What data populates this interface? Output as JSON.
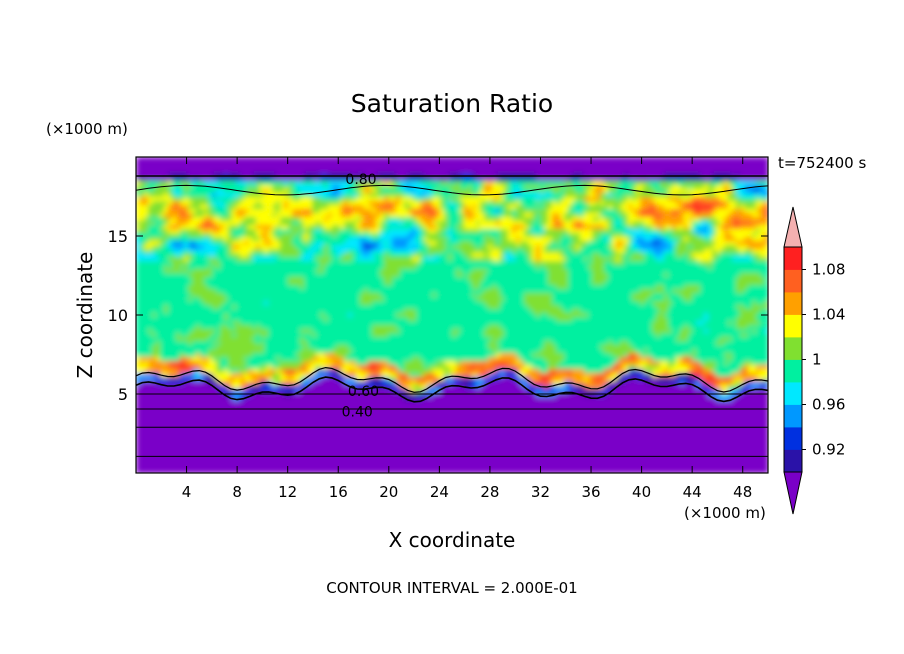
{
  "chart_data": {
    "type": "heatmap",
    "title": "Saturation Ratio",
    "xlabel": "X coordinate",
    "ylabel": "Z coordinate",
    "x_unit": "(×1000 m)",
    "y_unit": "(×1000 m)",
    "time_label": "t=752400 s",
    "footer": "CONTOUR INTERVAL = 2.000E-01",
    "xlim": [
      0,
      50
    ],
    "ylim": [
      0,
      20
    ],
    "x_ticks": [
      4,
      8,
      12,
      16,
      20,
      24,
      28,
      32,
      36,
      40,
      44,
      48
    ],
    "y_ticks": [
      5,
      10,
      15
    ],
    "colorbar": {
      "levels": [
        0.9,
        0.92,
        0.94,
        0.96,
        0.98,
        1.0,
        1.02,
        1.04,
        1.06,
        1.08,
        1.1
      ],
      "tick_labels": [
        "1.08",
        "1.04",
        "1",
        "0.96",
        "0.92"
      ],
      "tick_values": [
        1.08,
        1.04,
        1.0,
        0.96,
        0.92
      ],
      "colors": [
        "#7a00c8",
        "#2a12a8",
        "#0030e0",
        "#0098ff",
        "#00e8ff",
        "#00f0a0",
        "#80e030",
        "#ffff00",
        "#ffa000",
        "#ff6020",
        "#ff2020",
        "#f4b0b0"
      ]
    },
    "contour_labels": [
      {
        "text": "0.80",
        "x": 17.8,
        "z": 18.6
      },
      {
        "text": "0.60",
        "x": 18.0,
        "z": 5.2
      },
      {
        "text": "0.40",
        "x": 17.5,
        "z": 3.9
      }
    ]
  }
}
